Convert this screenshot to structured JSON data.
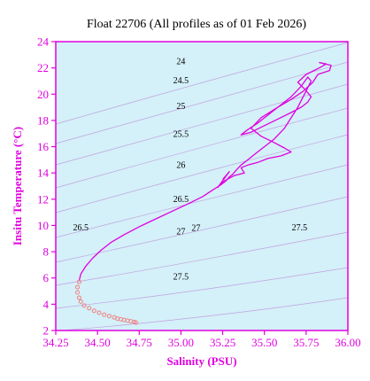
{
  "chart_data": {
    "type": "line",
    "title": "Float 22706  (All profiles as of 01 Feb 2026)",
    "xlabel": "Salinity (PSU)",
    "ylabel": "Insitu Temperature (°C)",
    "xlim": [
      34.25,
      36.0
    ],
    "ylim": [
      2,
      24
    ],
    "x_ticks": [
      "34.25",
      "34.50",
      "34.75",
      "35.00",
      "35.25",
      "35.50",
      "35.75",
      "36.00"
    ],
    "y_ticks": [
      "2",
      "4",
      "6",
      "8",
      "10",
      "12",
      "14",
      "16",
      "18",
      "20",
      "22",
      "24"
    ],
    "grid": false,
    "colors": {
      "plot_background": "#d4f0f8",
      "axis": "#e000e0",
      "profile_line": "#e000e0",
      "deep_points": "#f08080",
      "isopycnal": "#c0a0e0"
    },
    "isopycnal_labels": [
      {
        "text": "24",
        "x": 35.0,
        "y": 22.55
      },
      {
        "text": "24.5",
        "x": 35.0,
        "y": 21.1
      },
      {
        "text": "25",
        "x": 35.0,
        "y": 19.15
      },
      {
        "text": "25.5",
        "x": 35.0,
        "y": 17.0
      },
      {
        "text": "26",
        "x": 35.0,
        "y": 14.65
      },
      {
        "text": "26.5",
        "x": 35.0,
        "y": 12.05
      },
      {
        "text": "26.5",
        "x": 34.4,
        "y": 9.9
      },
      {
        "text": "27",
        "x": 35.0,
        "y": 9.6
      },
      {
        "text": "27",
        "x": 35.09,
        "y": 9.85
      },
      {
        "text": "27.5",
        "x": 35.0,
        "y": 6.15
      },
      {
        "text": "27.5",
        "x": 35.71,
        "y": 9.9
      }
    ],
    "series": [
      {
        "style": "line",
        "x": [
          34.39,
          34.4,
          34.43,
          34.47,
          34.52,
          34.58,
          34.66,
          34.75,
          34.85,
          34.95,
          35.05,
          35.13,
          35.19,
          35.24,
          35.27,
          35.29,
          35.31,
          35.33,
          35.36,
          35.4,
          35.44,
          35.48,
          35.52,
          35.56,
          35.59,
          35.62,
          35.64,
          35.66,
          35.68,
          35.7,
          35.72,
          35.74,
          35.76,
          35.78,
          35.76,
          35.72,
          35.66,
          35.59,
          35.52,
          35.46,
          35.4,
          35.36,
          35.42,
          35.5,
          35.58,
          35.66,
          35.72,
          35.76,
          35.78,
          35.74,
          35.7,
          35.75,
          35.83,
          35.87,
          35.83,
          35.9,
          35.89,
          35.82,
          35.79,
          35.73,
          35.66,
          35.58,
          35.48,
          35.42,
          35.48,
          35.56,
          35.62,
          35.66,
          35.6,
          35.52,
          35.46,
          35.4,
          35.36,
          35.38,
          35.32,
          35.26,
          35.22,
          35.29,
          35.25
        ],
        "y": [
          5.8,
          6.3,
          6.9,
          7.5,
          8.1,
          8.7,
          9.3,
          9.9,
          10.5,
          11.1,
          11.7,
          12.2,
          12.7,
          13.1,
          13.4,
          13.7,
          13.9,
          14.2,
          14.6,
          15.0,
          15.4,
          15.8,
          16.2,
          16.6,
          17.0,
          17.4,
          17.8,
          18.2,
          18.6,
          19.0,
          19.5,
          20.0,
          20.5,
          21.0,
          21.3,
          20.6,
          19.8,
          19.1,
          18.4,
          17.8,
          17.3,
          16.9,
          17.1,
          17.6,
          18.1,
          18.6,
          19.0,
          19.4,
          19.8,
          20.4,
          20.9,
          21.5,
          22.0,
          22.3,
          22.4,
          22.2,
          21.8,
          21.5,
          20.9,
          20.2,
          19.6,
          19.0,
          18.2,
          17.4,
          16.8,
          16.3,
          15.9,
          15.6,
          15.3,
          15.1,
          14.8,
          14.6,
          14.4,
          14.0,
          13.8,
          13.4,
          12.9,
          14.1,
          13.5
        ]
      },
      {
        "style": "points",
        "x": [
          34.39,
          34.38,
          34.38,
          34.39,
          34.4,
          34.42,
          34.45,
          34.48,
          34.51,
          34.54,
          34.57,
          34.6,
          34.62,
          34.64,
          34.66,
          34.68,
          34.7,
          34.72,
          34.73
        ],
        "y": [
          5.7,
          5.3,
          4.9,
          4.5,
          4.2,
          3.9,
          3.7,
          3.5,
          3.35,
          3.2,
          3.1,
          3.0,
          2.9,
          2.85,
          2.8,
          2.75,
          2.7,
          2.65,
          2.6
        ]
      }
    ]
  }
}
